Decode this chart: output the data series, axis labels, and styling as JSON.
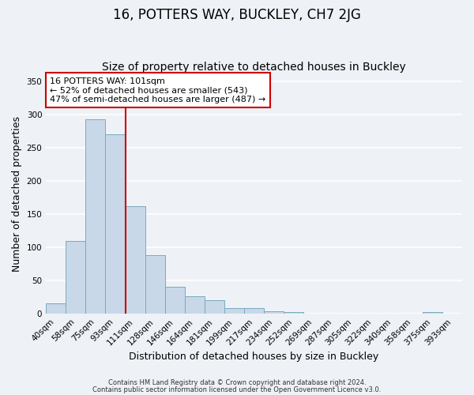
{
  "title": "16, POTTERS WAY, BUCKLEY, CH7 2JG",
  "subtitle": "Size of property relative to detached houses in Buckley",
  "xlabel": "Distribution of detached houses by size in Buckley",
  "ylabel": "Number of detached properties",
  "bar_labels": [
    "40sqm",
    "58sqm",
    "75sqm",
    "93sqm",
    "111sqm",
    "128sqm",
    "146sqm",
    "164sqm",
    "181sqm",
    "199sqm",
    "217sqm",
    "234sqm",
    "252sqm",
    "269sqm",
    "287sqm",
    "305sqm",
    "322sqm",
    "340sqm",
    "358sqm",
    "375sqm",
    "393sqm"
  ],
  "bar_values": [
    16,
    110,
    293,
    270,
    162,
    88,
    41,
    26,
    21,
    8,
    8,
    4,
    3,
    0,
    0,
    0,
    0,
    0,
    0,
    3,
    0
  ],
  "bar_color": "#c8d8e8",
  "bar_edge_color": "#7aaabb",
  "ylim": [
    0,
    360
  ],
  "yticks": [
    0,
    50,
    100,
    150,
    200,
    250,
    300,
    350
  ],
  "vline_x": 3.5,
  "vline_color": "#cc0000",
  "annotation_title": "16 POTTERS WAY: 101sqm",
  "annotation_line1": "← 52% of detached houses are smaller (543)",
  "annotation_line2": "47% of semi-detached houses are larger (487) →",
  "annotation_box_color": "#ffffff",
  "annotation_box_edge": "#cc0000",
  "footer1": "Contains HM Land Registry data © Crown copyright and database right 2024.",
  "footer2": "Contains public sector information licensed under the Open Government Licence v3.0.",
  "background_color": "#eef2f7",
  "grid_color": "#ffffff",
  "title_fontsize": 12,
  "subtitle_fontsize": 10,
  "tick_fontsize": 7.5,
  "ylabel_fontsize": 9,
  "xlabel_fontsize": 9,
  "annotation_fontsize": 8,
  "footer_fontsize": 6
}
